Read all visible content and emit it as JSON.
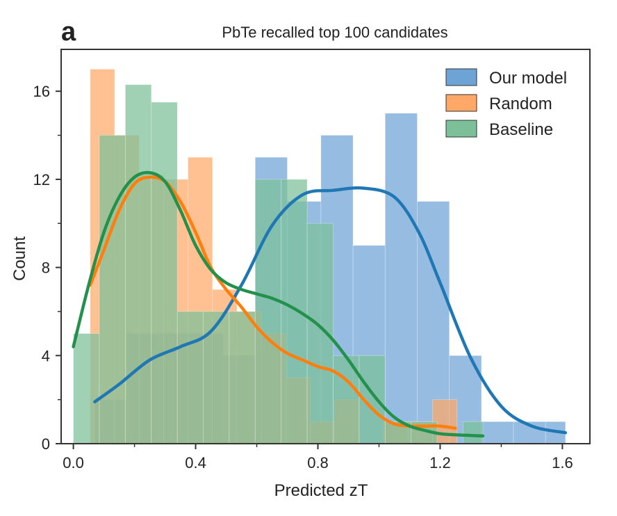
{
  "panel_letter": "a",
  "colors": {
    "Our model": "#6ea3d6",
    "Random": "#ffa868",
    "Baseline": "#7cbf98",
    "Our model_line": "#1f77b4",
    "Random_line": "#ff7f0e",
    "Baseline_line": "#23914c"
  },
  "chart_data": {
    "type": "bar",
    "subtype": "overlapping histograms with KDE curves",
    "title": "PbTe recalled top 100 candidates",
    "xlabel": "Predicted zT",
    "ylabel": "Count",
    "xlim": [
      -0.04,
      1.69
    ],
    "ylim": [
      0,
      17.9
    ],
    "xticks": [
      0.0,
      0.4,
      0.8,
      1.2,
      1.6
    ],
    "xtick_labels": [
      "0.0",
      "0.4",
      "0.8",
      "1.2",
      "1.6"
    ],
    "yticks": [
      0,
      4,
      8,
      12,
      16
    ],
    "ytick_labels": [
      "0",
      "4",
      "8",
      "12",
      "16"
    ],
    "grid": false,
    "legend_position": "top-right",
    "series": [
      {
        "name": "Our model",
        "bins": [
          {
            "x0": 0.07,
            "x1": 0.175,
            "count": 2
          },
          {
            "x0": 0.175,
            "x1": 0.28,
            "count": 5
          },
          {
            "x0": 0.28,
            "x1": 0.385,
            "count": 5
          },
          {
            "x0": 0.385,
            "x1": 0.49,
            "count": 5
          },
          {
            "x0": 0.49,
            "x1": 0.595,
            "count": 4
          },
          {
            "x0": 0.595,
            "x1": 0.7,
            "count": 13
          },
          {
            "x0": 0.7,
            "x1": 0.81,
            "count": 11
          },
          {
            "x0": 0.81,
            "x1": 0.915,
            "count": 14
          },
          {
            "x0": 0.915,
            "x1": 1.02,
            "count": 9
          },
          {
            "x0": 1.02,
            "x1": 1.125,
            "count": 15
          },
          {
            "x0": 1.125,
            "x1": 1.23,
            "count": 11
          },
          {
            "x0": 1.23,
            "x1": 1.335,
            "count": 4
          },
          {
            "x0": 1.335,
            "x1": 1.44,
            "count": 1
          },
          {
            "x0": 1.44,
            "x1": 1.545,
            "count": 1
          },
          {
            "x0": 1.545,
            "x1": 1.61,
            "count": 1
          }
        ],
        "kde": [
          [
            0.07,
            1.9
          ],
          [
            0.15,
            2.7
          ],
          [
            0.25,
            3.8
          ],
          [
            0.35,
            4.4
          ],
          [
            0.45,
            5.1
          ],
          [
            0.55,
            7.2
          ],
          [
            0.65,
            9.9
          ],
          [
            0.75,
            11.3
          ],
          [
            0.85,
            11.5
          ],
          [
            0.95,
            11.6
          ],
          [
            1.05,
            11.2
          ],
          [
            1.13,
            9.6
          ],
          [
            1.2,
            7.3
          ],
          [
            1.3,
            3.9
          ],
          [
            1.4,
            1.7
          ],
          [
            1.5,
            0.8
          ],
          [
            1.61,
            0.5
          ]
        ]
      },
      {
        "name": "Random",
        "bins": [
          {
            "x0": 0.055,
            "x1": 0.135,
            "count": 17
          },
          {
            "x0": 0.135,
            "x1": 0.215,
            "count": 14
          },
          {
            "x0": 0.215,
            "x1": 0.295,
            "count": 12.2
          },
          {
            "x0": 0.295,
            "x1": 0.375,
            "count": 12
          },
          {
            "x0": 0.375,
            "x1": 0.455,
            "count": 13
          },
          {
            "x0": 0.455,
            "x1": 0.535,
            "count": 7
          },
          {
            "x0": 0.535,
            "x1": 0.615,
            "count": 6
          },
          {
            "x0": 0.615,
            "x1": 0.695,
            "count": 5
          },
          {
            "x0": 0.695,
            "x1": 0.775,
            "count": 3
          },
          {
            "x0": 0.775,
            "x1": 0.855,
            "count": 1
          },
          {
            "x0": 0.855,
            "x1": 0.935,
            "count": 2
          },
          {
            "x0": 0.935,
            "x1": 1.015,
            "count": 0
          },
          {
            "x0": 1.015,
            "x1": 1.095,
            "count": 1
          },
          {
            "x0": 1.095,
            "x1": 1.175,
            "count": 1
          },
          {
            "x0": 1.175,
            "x1": 1.255,
            "count": 2
          }
        ],
        "kde": [
          [
            0.055,
            7.2
          ],
          [
            0.1,
            8.8
          ],
          [
            0.15,
            10.6
          ],
          [
            0.2,
            11.8
          ],
          [
            0.25,
            12.1
          ],
          [
            0.3,
            11.9
          ],
          [
            0.35,
            11.0
          ],
          [
            0.4,
            9.6
          ],
          [
            0.45,
            8.0
          ],
          [
            0.5,
            7.0
          ],
          [
            0.55,
            6.2
          ],
          [
            0.6,
            5.3
          ],
          [
            0.65,
            4.6
          ],
          [
            0.7,
            4.1
          ],
          [
            0.75,
            3.8
          ],
          [
            0.8,
            3.5
          ],
          [
            0.85,
            3.3
          ],
          [
            0.9,
            2.8
          ],
          [
            0.95,
            2.0
          ],
          [
            1.0,
            1.3
          ],
          [
            1.05,
            0.9
          ],
          [
            1.1,
            0.8
          ],
          [
            1.15,
            0.8
          ],
          [
            1.2,
            0.8
          ],
          [
            1.25,
            0.7
          ]
        ]
      },
      {
        "name": "Baseline",
        "bins": [
          {
            "x0": 0.0,
            "x1": 0.085,
            "count": 5
          },
          {
            "x0": 0.085,
            "x1": 0.17,
            "count": 14
          },
          {
            "x0": 0.17,
            "x1": 0.255,
            "count": 16.3
          },
          {
            "x0": 0.255,
            "x1": 0.34,
            "count": 15.5
          },
          {
            "x0": 0.34,
            "x1": 0.425,
            "count": 6
          },
          {
            "x0": 0.425,
            "x1": 0.51,
            "count": 6
          },
          {
            "x0": 0.51,
            "x1": 0.595,
            "count": 6
          },
          {
            "x0": 0.595,
            "x1": 0.68,
            "count": 12
          },
          {
            "x0": 0.68,
            "x1": 0.765,
            "count": 12
          },
          {
            "x0": 0.765,
            "x1": 0.85,
            "count": 10
          },
          {
            "x0": 0.85,
            "x1": 0.935,
            "count": 4
          },
          {
            "x0": 0.935,
            "x1": 1.02,
            "count": 4
          },
          {
            "x0": 1.02,
            "x1": 1.105,
            "count": 1
          },
          {
            "x0": 1.105,
            "x1": 1.19,
            "count": 1
          },
          {
            "x0": 1.19,
            "x1": 1.275,
            "count": 0
          },
          {
            "x0": 1.275,
            "x1": 1.34,
            "count": 1
          }
        ],
        "kde": [
          [
            0.0,
            4.4
          ],
          [
            0.05,
            7.2
          ],
          [
            0.1,
            9.6
          ],
          [
            0.15,
            11.2
          ],
          [
            0.2,
            12.1
          ],
          [
            0.25,
            12.3
          ],
          [
            0.3,
            11.9
          ],
          [
            0.35,
            10.6
          ],
          [
            0.4,
            9.0
          ],
          [
            0.45,
            7.9
          ],
          [
            0.5,
            7.3
          ],
          [
            0.55,
            7.0
          ],
          [
            0.6,
            6.8
          ],
          [
            0.65,
            6.6
          ],
          [
            0.7,
            6.3
          ],
          [
            0.75,
            5.9
          ],
          [
            0.8,
            5.4
          ],
          [
            0.85,
            4.7
          ],
          [
            0.9,
            3.8
          ],
          [
            0.95,
            2.8
          ],
          [
            1.0,
            1.9
          ],
          [
            1.05,
            1.2
          ],
          [
            1.1,
            0.8
          ],
          [
            1.15,
            0.6
          ],
          [
            1.2,
            0.45
          ],
          [
            1.25,
            0.4
          ],
          [
            1.34,
            0.35
          ]
        ]
      }
    ]
  }
}
